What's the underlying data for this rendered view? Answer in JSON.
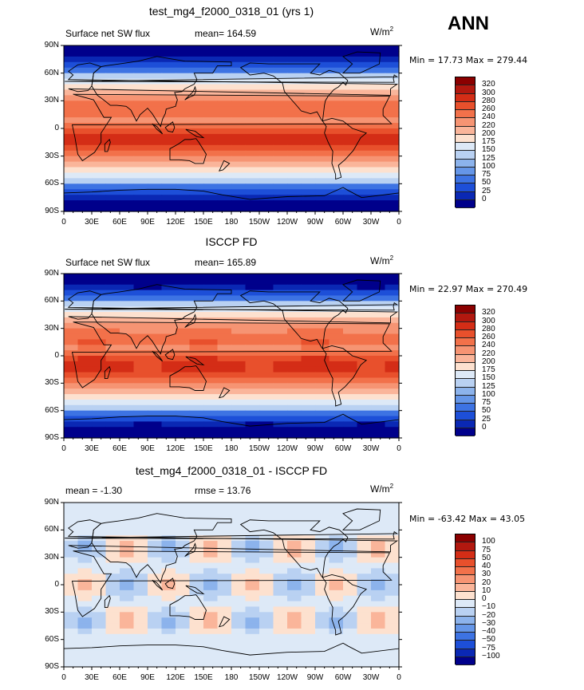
{
  "season": "ANN",
  "chart_data": [
    {
      "type": "heatmap",
      "title": "test_mg4_f2000_0318_01 (yrs 1)",
      "left_label": "Surface net SW flux",
      "mid_label": "mean=  164.59",
      "units": "W/m",
      "units_sup": "2",
      "min_max": "Min =   17.73 Max =  279.44",
      "colorbar_labels": [
        "320",
        "300",
        "280",
        "260",
        "240",
        "220",
        "200",
        "175",
        "150",
        "125",
        "100",
        "75",
        "50",
        "25",
        "0"
      ],
      "colorbar_colors": [
        "#8b0000",
        "#b2180f",
        "#d42d16",
        "#e8502c",
        "#f2714a",
        "#f69473",
        "#fab59a",
        "#fde1cf",
        "#dde9f7",
        "#b9d1f2",
        "#8cb3ec",
        "#6596e8",
        "#3d73e3",
        "#1d4fd8",
        "#0a28b4",
        "#00008b"
      ],
      "y_ticks": [
        "90N",
        "60N",
        "30N",
        "0",
        "30S",
        "60S",
        "90S"
      ],
      "x_ticks": [
        "0",
        "30E",
        "60E",
        "90E",
        "120E",
        "150E",
        "180",
        "150W",
        "120W",
        "90W",
        "60W",
        "30W",
        "0"
      ]
    },
    {
      "type": "heatmap",
      "title": "ISCCP FD",
      "left_label": "Surface net SW flux",
      "mid_label": "mean=  165.89",
      "units": "W/m",
      "units_sup": "2",
      "min_max": "Min =   22.97 Max =  270.49",
      "colorbar_labels": [
        "320",
        "300",
        "280",
        "260",
        "240",
        "220",
        "200",
        "175",
        "150",
        "125",
        "100",
        "75",
        "50",
        "25",
        "0"
      ],
      "colorbar_colors": [
        "#8b0000",
        "#b2180f",
        "#d42d16",
        "#e8502c",
        "#f2714a",
        "#f69473",
        "#fab59a",
        "#fde1cf",
        "#dde9f7",
        "#b9d1f2",
        "#8cb3ec",
        "#6596e8",
        "#3d73e3",
        "#1d4fd8",
        "#0a28b4",
        "#00008b"
      ],
      "y_ticks": [
        "90N",
        "60N",
        "30N",
        "0",
        "30S",
        "60S",
        "90S"
      ],
      "x_ticks": [
        "0",
        "30E",
        "60E",
        "90E",
        "120E",
        "150E",
        "180",
        "150W",
        "120W",
        "90W",
        "60W",
        "30W",
        "0"
      ]
    },
    {
      "type": "heatmap",
      "title": "test_mg4_f2000_0318_01 - ISCCP FD",
      "left_label": "mean =   -1.30",
      "mid_label": "rmse =   13.76",
      "units": "W/m",
      "units_sup": "2",
      "min_max": "Min = -63.42 Max =   43.05",
      "colorbar_labels": [
        "100",
        "75",
        "50",
        "40",
        "30",
        "20",
        "10",
        "0",
        "−10",
        "−20",
        "−30",
        "−40",
        "−50",
        "−75",
        "−100"
      ],
      "colorbar_colors": [
        "#8b0000",
        "#b2180f",
        "#d42d16",
        "#e8502c",
        "#f2714a",
        "#f69473",
        "#fab59a",
        "#fde1cf",
        "#dde9f7",
        "#b9d1f2",
        "#8cb3ec",
        "#6596e8",
        "#3d73e3",
        "#1d4fd8",
        "#0a28b4",
        "#00008b"
      ],
      "y_ticks": [
        "90N",
        "60N",
        "30N",
        "0",
        "30S",
        "60S",
        "90S"
      ],
      "x_ticks": [
        "0",
        "30E",
        "60E",
        "90E",
        "120E",
        "150E",
        "180",
        "150W",
        "120W",
        "90W",
        "60W",
        "30W",
        "0"
      ]
    }
  ]
}
